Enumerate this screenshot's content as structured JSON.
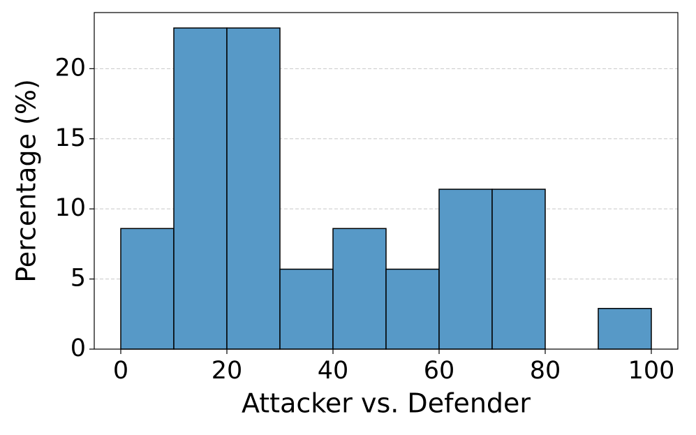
{
  "chart_data": {
    "type": "histogram",
    "xlabel": "Attacker vs. Defender",
    "ylabel": "Percentage (%)",
    "bins": [
      0,
      10,
      20,
      30,
      40,
      50,
      60,
      70,
      80,
      90,
      100
    ],
    "values": [
      8.6,
      22.9,
      22.9,
      5.7,
      8.6,
      5.7,
      11.4,
      11.4,
      0,
      2.9
    ],
    "color": "#5799c7",
    "edgecolor": "#000000",
    "xlim": [
      -5,
      105
    ],
    "ylim": [
      0,
      24
    ],
    "xticks": [
      0,
      20,
      40,
      60,
      80,
      100
    ],
    "yticks": [
      0,
      5,
      10,
      15,
      20
    ],
    "grid": true
  }
}
